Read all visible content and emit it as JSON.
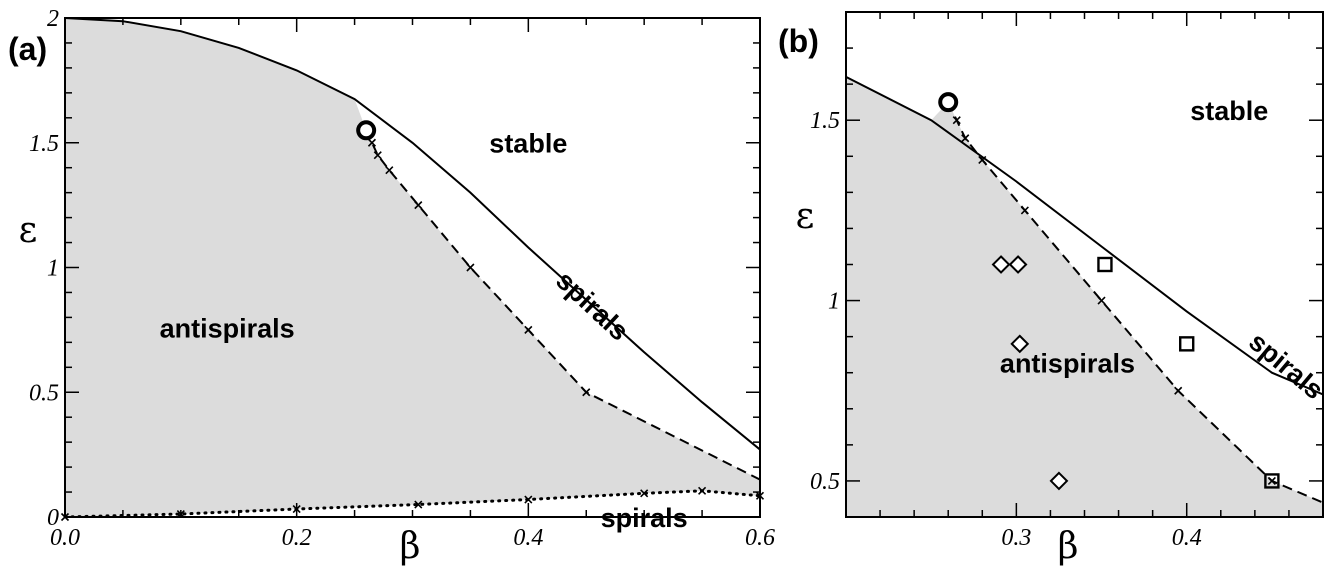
{
  "chart_data": [
    {
      "panel": "(a)",
      "type": "line",
      "xlabel": "β",
      "ylabel": "ε",
      "xlim": [
        0,
        0.6
      ],
      "ylim": [
        0,
        2
      ],
      "xticks": [
        {
          "v": 0,
          "label": "0.0"
        },
        {
          "v": 0.2,
          "label": "0.2"
        },
        {
          "v": 0.4,
          "label": "0.4"
        },
        {
          "v": 0.6,
          "label": "0.6"
        }
      ],
      "yticks": [
        {
          "v": 0,
          "label": "0"
        },
        {
          "v": 0.5,
          "label": "0.5"
        },
        {
          "v": 1,
          "label": "1"
        },
        {
          "v": 1.5,
          "label": "1.5"
        },
        {
          "v": 2,
          "label": "2"
        }
      ],
      "series": [
        {
          "style": "solid",
          "x": [
            0,
            0.05,
            0.1,
            0.15,
            0.2,
            0.25,
            0.3,
            0.35,
            0.4,
            0.45,
            0.5,
            0.55,
            0.6
          ],
          "y": [
            2.0,
            1.987,
            1.947,
            1.88,
            1.79,
            1.675,
            1.5,
            1.3,
            1.08,
            0.87,
            0.66,
            0.46,
            0.27
          ]
        },
        {
          "style": "dashed",
          "x": [
            0.26,
            0.265,
            0.27,
            0.28,
            0.305,
            0.35,
            0.4,
            0.45,
            0.6
          ],
          "y": [
            1.55,
            1.5,
            1.45,
            1.39,
            1.25,
            1.0,
            0.75,
            0.5,
            0.15
          ]
        },
        {
          "style": "dotted",
          "x": [
            0,
            0.1,
            0.2,
            0.305,
            0.4,
            0.5,
            0.55,
            0.6
          ],
          "y": [
            0,
            0.012,
            0.032,
            0.05,
            0.07,
            0.095,
            0.105,
            0.085
          ]
        }
      ],
      "markers": [
        {
          "shape": "cross",
          "x": [
            0.265,
            0.27,
            0.28,
            0.305,
            0.35,
            0.4,
            0.45
          ],
          "y": [
            1.5,
            1.45,
            1.39,
            1.25,
            1.0,
            0.75,
            0.5
          ]
        },
        {
          "shape": "cross",
          "x": [
            0,
            0.1,
            0.2,
            0.305,
            0.4,
            0.5,
            0.55,
            0.6
          ],
          "y": [
            0,
            0.012,
            0.032,
            0.05,
            0.07,
            0.095,
            0.105,
            0.085
          ]
        },
        {
          "shape": "circle",
          "x": [
            0.26
          ],
          "y": [
            1.55
          ]
        }
      ],
      "regions": [
        {
          "label": "stable",
          "x": 0.4,
          "y": 1.46
        },
        {
          "label": "antispirals",
          "x": 0.14,
          "y": 0.72
        },
        {
          "label": "spirals",
          "x": 0.45,
          "y": 0.82,
          "rotate": 43
        },
        {
          "label": "spirals",
          "x": 0.5,
          "y": -0.04
        }
      ]
    },
    {
      "panel": "(b)",
      "type": "line",
      "xlabel": "β",
      "ylabel": "ε",
      "xlim": [
        0.2,
        0.48
      ],
      "ylim": [
        0.4,
        1.8
      ],
      "xticks": [
        {
          "v": 0.3,
          "label": "0.3"
        },
        {
          "v": 0.4,
          "label": "0.4"
        }
      ],
      "yticks": [
        {
          "v": 0.5,
          "label": "0.5"
        },
        {
          "v": 1,
          "label": "1"
        },
        {
          "v": 1.5,
          "label": "1.5"
        }
      ],
      "series": [
        {
          "style": "solid",
          "x": [
            0.2,
            0.25,
            0.3,
            0.35,
            0.4,
            0.45,
            0.48
          ],
          "y": [
            1.62,
            1.5,
            1.33,
            1.15,
            0.97,
            0.8,
            0.74
          ]
        },
        {
          "style": "dashed",
          "x": [
            0.26,
            0.265,
            0.27,
            0.28,
            0.305,
            0.35,
            0.395,
            0.45,
            0.48
          ],
          "y": [
            1.55,
            1.5,
            1.45,
            1.39,
            1.25,
            1.0,
            0.75,
            0.5,
            0.44
          ]
        }
      ],
      "markers": [
        {
          "shape": "cross",
          "x": [
            0.265,
            0.27,
            0.28,
            0.305,
            0.35,
            0.395,
            0.45
          ],
          "y": [
            1.5,
            1.45,
            1.39,
            1.25,
            1.0,
            0.75,
            0.5
          ]
        },
        {
          "shape": "circle",
          "x": [
            0.26
          ],
          "y": [
            1.55
          ]
        },
        {
          "shape": "diamond",
          "x": [
            0.291,
            0.301,
            0.302,
            0.325
          ],
          "y": [
            1.1,
            1.1,
            0.88,
            0.5
          ]
        },
        {
          "shape": "square",
          "x": [
            0.352,
            0.4,
            0.45
          ],
          "y": [
            1.1,
            0.88,
            0.5
          ]
        }
      ],
      "regions": [
        {
          "label": "stable",
          "x": 0.425,
          "y": 1.5
        },
        {
          "label": "antispirals",
          "x": 0.33,
          "y": 0.8
        },
        {
          "label": "spirals",
          "x": 0.455,
          "y": 0.8,
          "rotate": 40
        }
      ]
    }
  ]
}
